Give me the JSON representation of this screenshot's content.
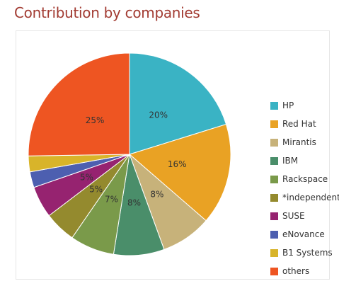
{
  "title": "Contribution by companies",
  "chart_data": {
    "type": "pie",
    "title": "Contribution by companies",
    "slices": [
      {
        "name": "HP",
        "value": 20,
        "label": "20%",
        "color": "#3ab3c4"
      },
      {
        "name": "Red Hat",
        "value": 16,
        "label": "16%",
        "color": "#e9a224"
      },
      {
        "name": "Mirantis",
        "value": 8,
        "label": "8%",
        "color": "#c7b27a"
      },
      {
        "name": "IBM",
        "value": 8,
        "label": "8%",
        "color": "#4a8e6a"
      },
      {
        "name": "Rackspace",
        "value": 7,
        "label": "7%",
        "color": "#7a9a4a"
      },
      {
        "name": "*independent",
        "value": 5,
        "label": "5%",
        "color": "#948a2e"
      },
      {
        "name": "SUSE",
        "value": 5,
        "label": "5%",
        "color": "#962370"
      },
      {
        "name": "eNovance",
        "value": 2.5,
        "label": "",
        "color": "#4d5fb0"
      },
      {
        "name": "B1 Systems",
        "value": 2.5,
        "label": "",
        "color": "#d8b42a"
      },
      {
        "name": "others",
        "value": 25,
        "label": "25%",
        "color": "#ee5522"
      }
    ],
    "legend_position": "right",
    "start_angle_deg": 0,
    "direction": "clockwise"
  }
}
